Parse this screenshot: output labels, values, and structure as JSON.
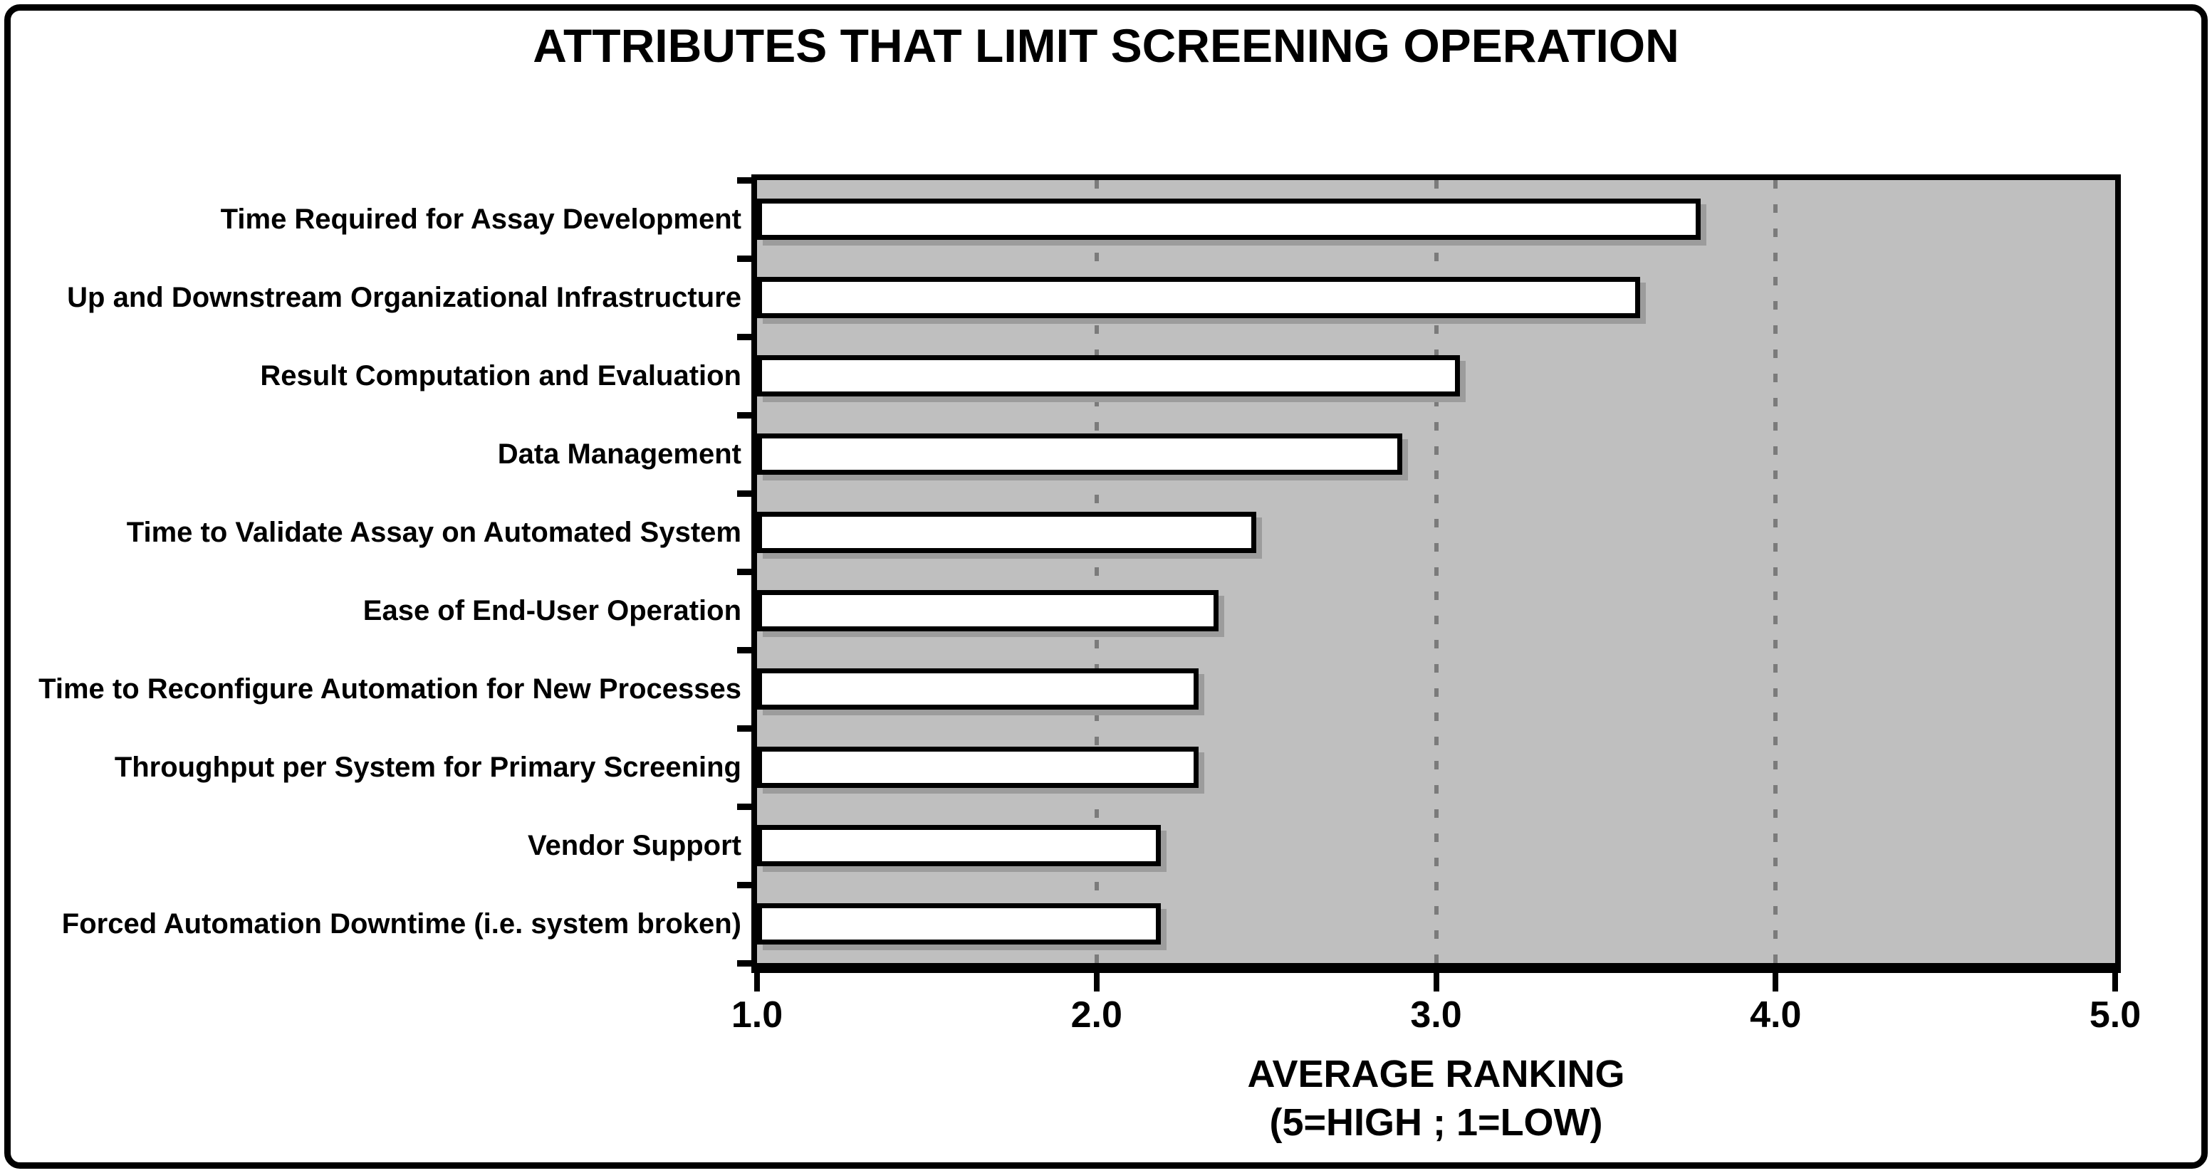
{
  "title": "ATTRIBUTES THAT LIMIT SCREENING OPERATION",
  "x_axis": {
    "label_line1": "AVERAGE RANKING",
    "label_line2": "(5=HIGH ; 1=LOW)",
    "ticks": [
      "1.0",
      "2.0",
      "3.0",
      "4.0",
      "5.0"
    ]
  },
  "chart_data": {
    "type": "bar",
    "orientation": "horizontal",
    "title": "ATTRIBUTES THAT LIMIT SCREENING OPERATION",
    "xlabel": "AVERAGE RANKING (5=HIGH ; 1=LOW)",
    "ylabel": "",
    "xlim": [
      1.0,
      5.0
    ],
    "xticks": [
      1.0,
      2.0,
      3.0,
      4.0,
      5.0
    ],
    "xtick_labels": [
      "1.0",
      "2.0",
      "3.0",
      "4.0",
      "5.0"
    ],
    "gridlines_at": [
      2.0,
      3.0,
      4.0
    ],
    "grid_style": "dashed-vertical",
    "legend": "none",
    "categories": [
      "Time Required for Assay Development",
      "Up and Downstream Organizational Infrastructure",
      "Result Computation and Evaluation",
      "Data Management",
      "Time to Validate Assay on Automated System",
      "Ease of End-User Operation",
      "Time to Reconfigure Automation for New Processes",
      "Throughput per System for Primary Screening",
      "Vendor Support",
      "Forced Automation Downtime (i.e. system broken)"
    ],
    "values": [
      3.78,
      3.6,
      3.07,
      2.9,
      2.47,
      2.36,
      2.3,
      2.3,
      2.19,
      2.19
    ],
    "colors": {
      "page_background": "#ffffff",
      "plot_background": "#bfbfbf",
      "bar_fill": "#ffffff",
      "bar_border": "#000000",
      "bar_shadow": "#9c9c9c",
      "gridline": "#7b7b7b",
      "frame_border": "#000000",
      "text": "#000000"
    }
  }
}
